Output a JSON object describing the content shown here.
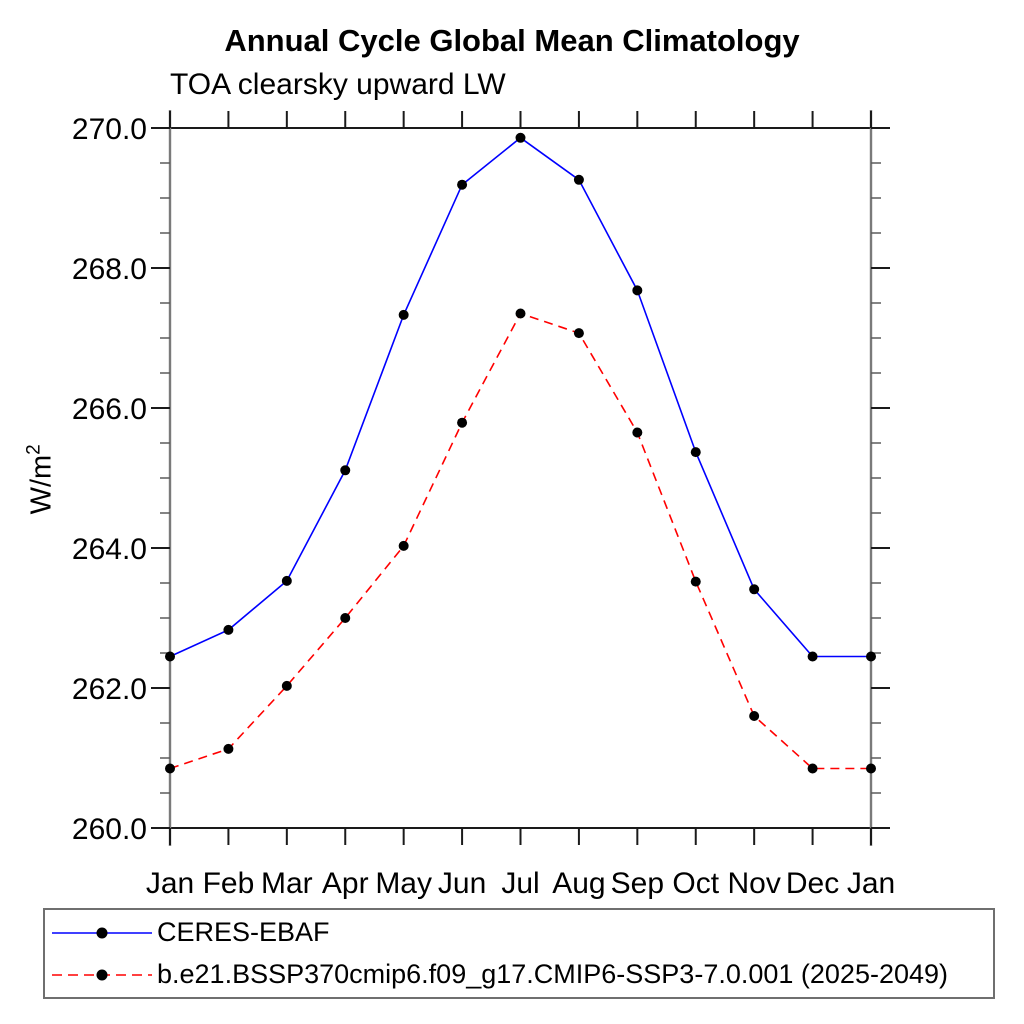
{
  "chart_data": {
    "type": "line",
    "title": "Annual Cycle Global Mean Climatology",
    "subtitle": "TOA clearsky upward LW",
    "ylabel": {
      "base": "W/m",
      "sup": "2"
    },
    "x_categories": [
      "Jan",
      "Feb",
      "Mar",
      "Apr",
      "May",
      "Jun",
      "Jul",
      "Aug",
      "Sep",
      "Oct",
      "Nov",
      "Dec",
      "Jan"
    ],
    "ylim": [
      260.0,
      270.0
    ],
    "ytick_major": [
      260,
      262,
      264,
      266,
      268,
      270
    ],
    "ytick_labels": [
      "260.0",
      "262.0",
      "264.0",
      "266.0",
      "268.0",
      "270.0"
    ],
    "y_minor_step": 0.5,
    "grid": false,
    "legend_position": "bottom-left-box",
    "axis_colors": {
      "vertical": "#7a7a7a",
      "horizontal": "#1a1a1a",
      "major_tick": "#1a1a1a",
      "minor_tick": "#5a5a5a"
    },
    "marker": {
      "shape": "circle",
      "color": "#000000"
    },
    "series": [
      {
        "name": "CERES-EBAF",
        "color": "#0000ff",
        "style": "solid",
        "values": [
          262.45,
          262.83,
          263.53,
          265.11,
          267.33,
          269.19,
          269.86,
          269.26,
          267.68,
          265.37,
          263.41,
          262.45,
          262.45
        ]
      },
      {
        "name": "b.e21.BSSP370cmip6.f09_g17.CMIP6-SSP3-7.0.001 (2025-2049)",
        "color": "#ff0000",
        "style": "dashed",
        "values": [
          260.85,
          261.13,
          262.03,
          263.0,
          264.03,
          265.79,
          267.35,
          267.07,
          265.65,
          263.52,
          261.6,
          260.85,
          260.85
        ]
      }
    ]
  }
}
